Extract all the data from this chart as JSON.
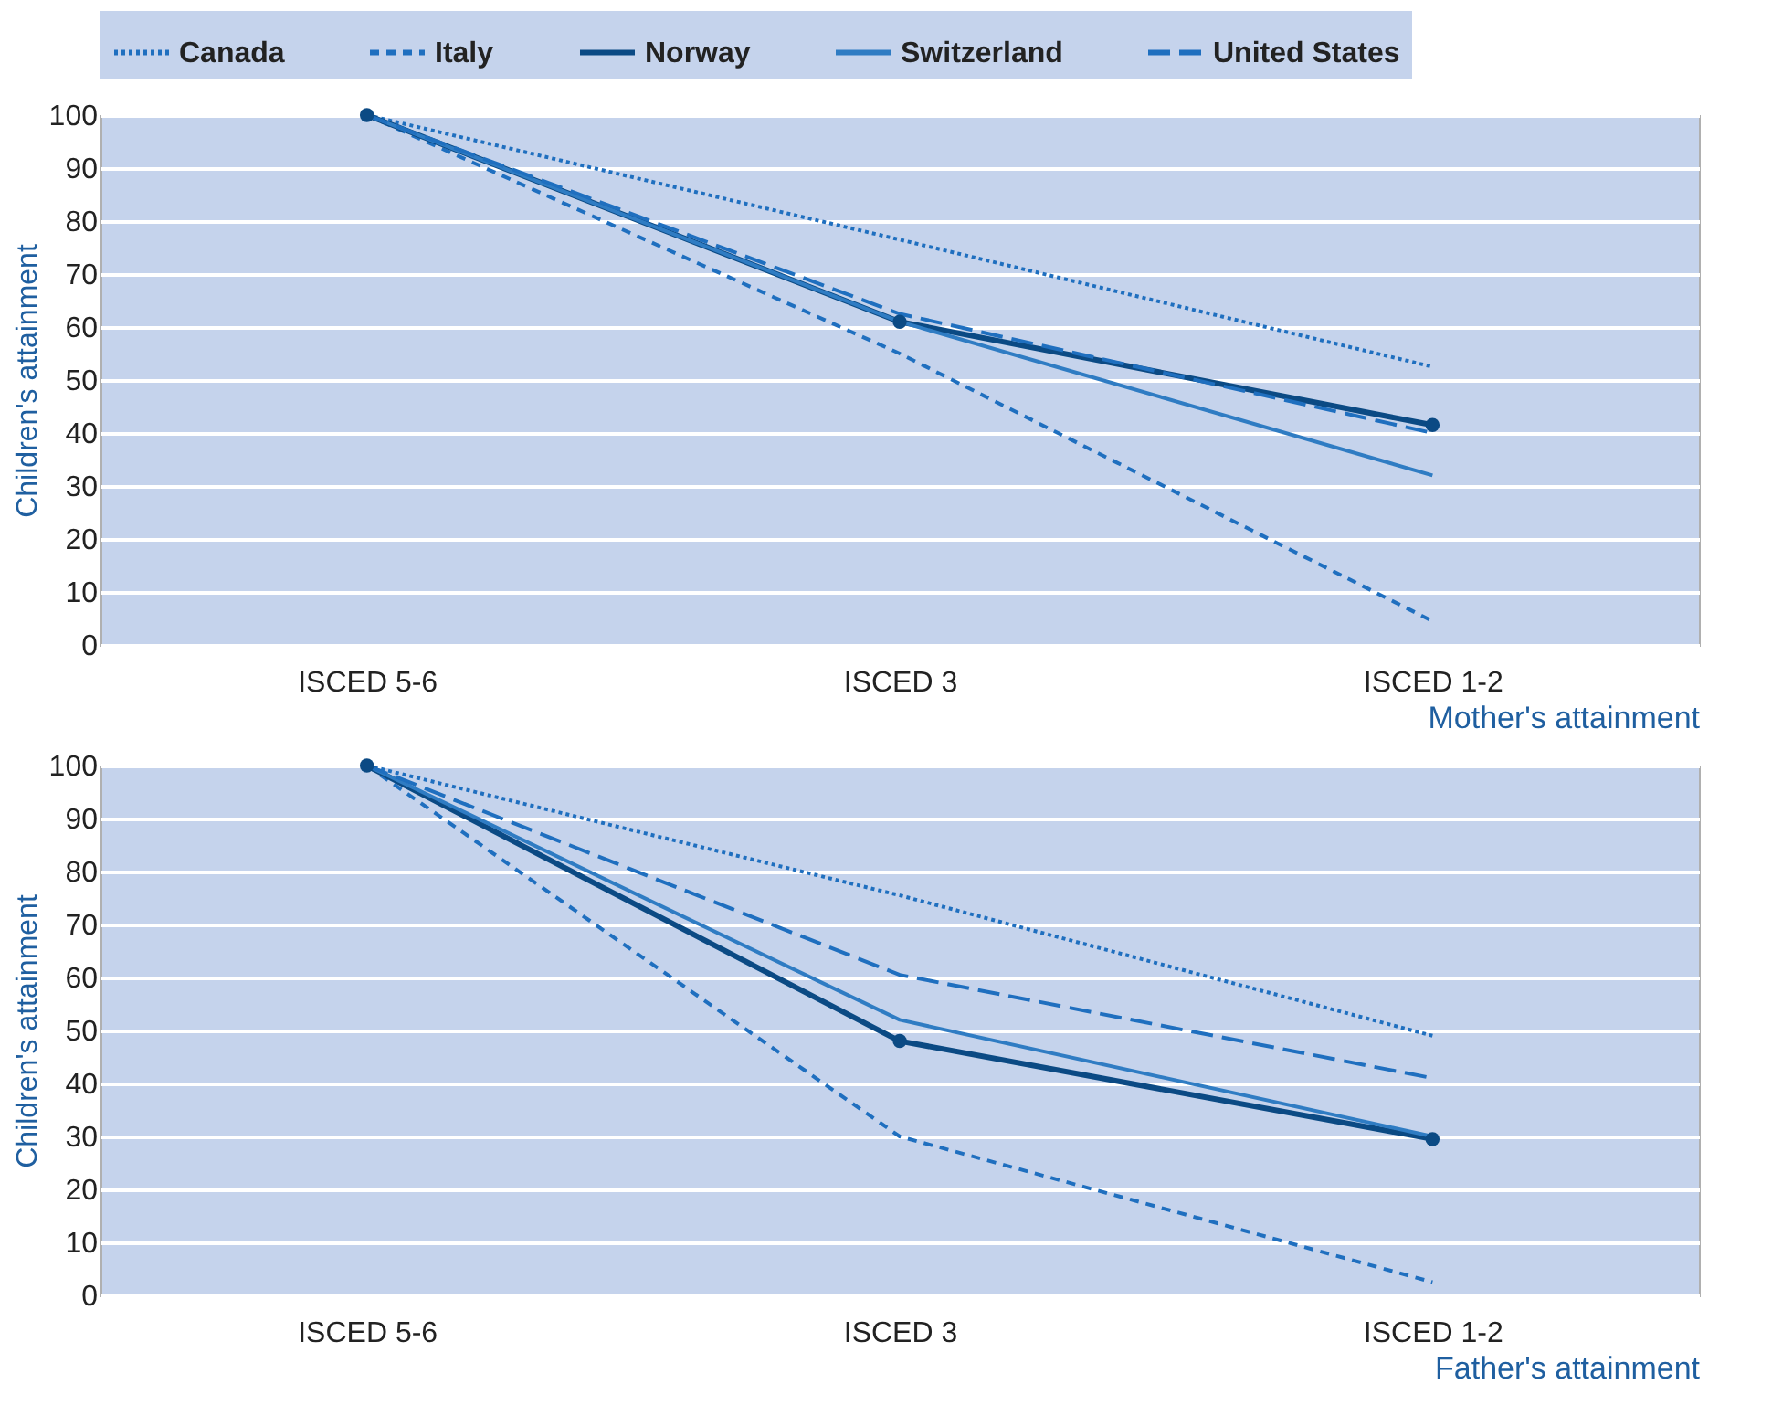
{
  "chart_data": [
    {
      "type": "line",
      "xlabel": "Mother's attainment",
      "ylabel": "Children's attainment",
      "categories": [
        "ISCED 5-6",
        "ISCED 3",
        "ISCED 1-2"
      ],
      "ylim": [
        0,
        100
      ],
      "yticks": [
        0,
        10,
        20,
        30,
        40,
        50,
        60,
        70,
        80,
        90,
        100
      ],
      "grid": "y",
      "legend": "top",
      "series": [
        {
          "name": "Canada",
          "color": "#1f6fbf",
          "line_style": "dotted",
          "values": [
            100,
            76.5,
            52.5
          ]
        },
        {
          "name": "Italy",
          "color": "#1f6fbf",
          "line_style": "dashed",
          "values": [
            100,
            55,
            4.5
          ]
        },
        {
          "name": "Norway",
          "color": "#0b4a84",
          "line_style": "solid",
          "marker": "circle",
          "values": [
            100,
            61,
            41.5
          ]
        },
        {
          "name": "Switzerland",
          "color": "#2f7cc3",
          "line_style": "solid",
          "values": [
            100,
            61,
            32
          ]
        },
        {
          "name": "United States",
          "color": "#1f6fbf",
          "line_style": "dashed",
          "values": [
            100,
            62.5,
            40
          ]
        }
      ]
    },
    {
      "type": "line",
      "xlabel": "Father's attainment",
      "ylabel": "Children's attainment",
      "categories": [
        "ISCED 5-6",
        "ISCED 3",
        "ISCED 1-2"
      ],
      "ylim": [
        0,
        100
      ],
      "yticks": [
        0,
        10,
        20,
        30,
        40,
        50,
        60,
        70,
        80,
        90,
        100
      ],
      "grid": "y",
      "legend": false,
      "series": [
        {
          "name": "Canada",
          "color": "#1f6fbf",
          "line_style": "dotted",
          "values": [
            100,
            75.5,
            49
          ]
        },
        {
          "name": "Italy",
          "color": "#1f6fbf",
          "line_style": "dashed",
          "values": [
            100,
            30,
            2.5
          ]
        },
        {
          "name": "Norway",
          "color": "#0b4a84",
          "line_style": "solid",
          "marker": "circle",
          "values": [
            100,
            48,
            29.5
          ]
        },
        {
          "name": "Switzerland",
          "color": "#2f7cc3",
          "line_style": "solid",
          "values": [
            100,
            52,
            30
          ]
        },
        {
          "name": "United States",
          "color": "#1f6fbf",
          "line_style": "dashed",
          "values": [
            100,
            60.5,
            41
          ]
        }
      ]
    }
  ]
}
